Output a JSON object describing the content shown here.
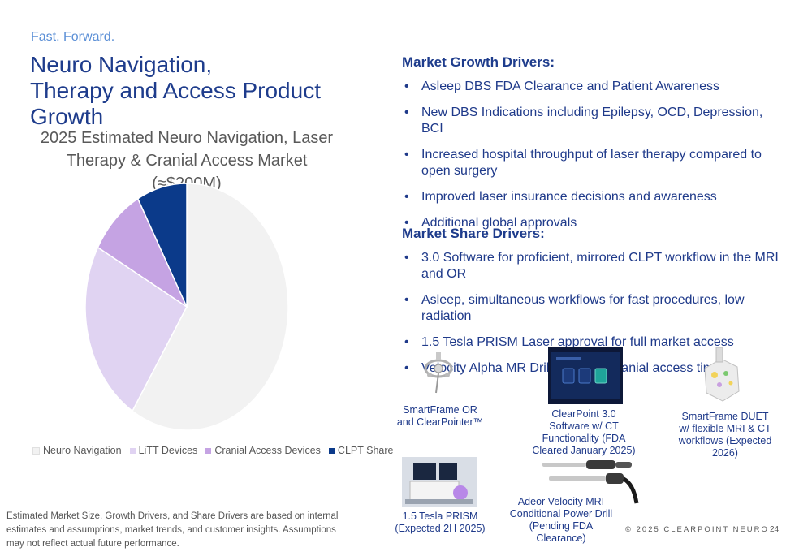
{
  "header": {
    "tagline": "Fast. Forward.",
    "title_line1": "Neuro Navigation,",
    "title_line2": "Therapy and Access Product Growth"
  },
  "chart_data": {
    "type": "pie",
    "title_line1": "2025 Estimated Neuro Navigation, Laser",
    "title_line2": "Therapy & Cranial Access Market (≈$200M)",
    "categories": [
      "Neuro Navigation",
      "LiTT Devices",
      "Cranial Access Devices",
      "CLPT Share"
    ],
    "values": [
      59,
      24,
      9,
      8
    ],
    "colors": [
      "#f2f2f2",
      "#e0d3f2",
      "#c5a3e3",
      "#0b3a8a"
    ],
    "legend_position": "bottom"
  },
  "growth": {
    "heading": "Market Growth Drivers:",
    "items": [
      "Asleep DBS FDA Clearance and Patient Awareness",
      "New DBS Indications including Epilepsy, OCD, Depression, BCI",
      "Increased hospital throughput of laser therapy compared to open surgery",
      "Improved laser insurance decisions and awareness",
      "Additional global approvals"
    ]
  },
  "share": {
    "heading": "Market Share Drivers:",
    "items": [
      "3.0 Software for proficient, mirrored CLPT workflow in the MRI and OR",
      "Asleep, simultaneous workflows for fast procedures, low radiation",
      "1.5 Tesla PRISM Laser approval for full market access",
      "Velocity Alpha MR Drill for faster cranial access times"
    ]
  },
  "products": {
    "smartframe_or": "SmartFrame OR and ClearPointer™",
    "software": "ClearPoint 3.0 Software w/ CT Functionality (FDA Cleared January 2025)",
    "duet": "SmartFrame DUET w/ flexible MRI & CT workflows (Expected 2026)",
    "prism": "1.5 Tesla PRISM (Expected 2H 2025)",
    "drill": "Adeor Velocity MRI Conditional Power Drill (Pending FDA Clearance)"
  },
  "disclaimer": "Estimated Market Size, Growth Drivers, and Share Drivers are based on internal estimates and assumptions, market trends, and customer insights.  Assumptions may not reflect actual future performance.",
  "footer": {
    "copyright": "© 2025 CLEARPOINT NEURO",
    "page_number": "24"
  }
}
